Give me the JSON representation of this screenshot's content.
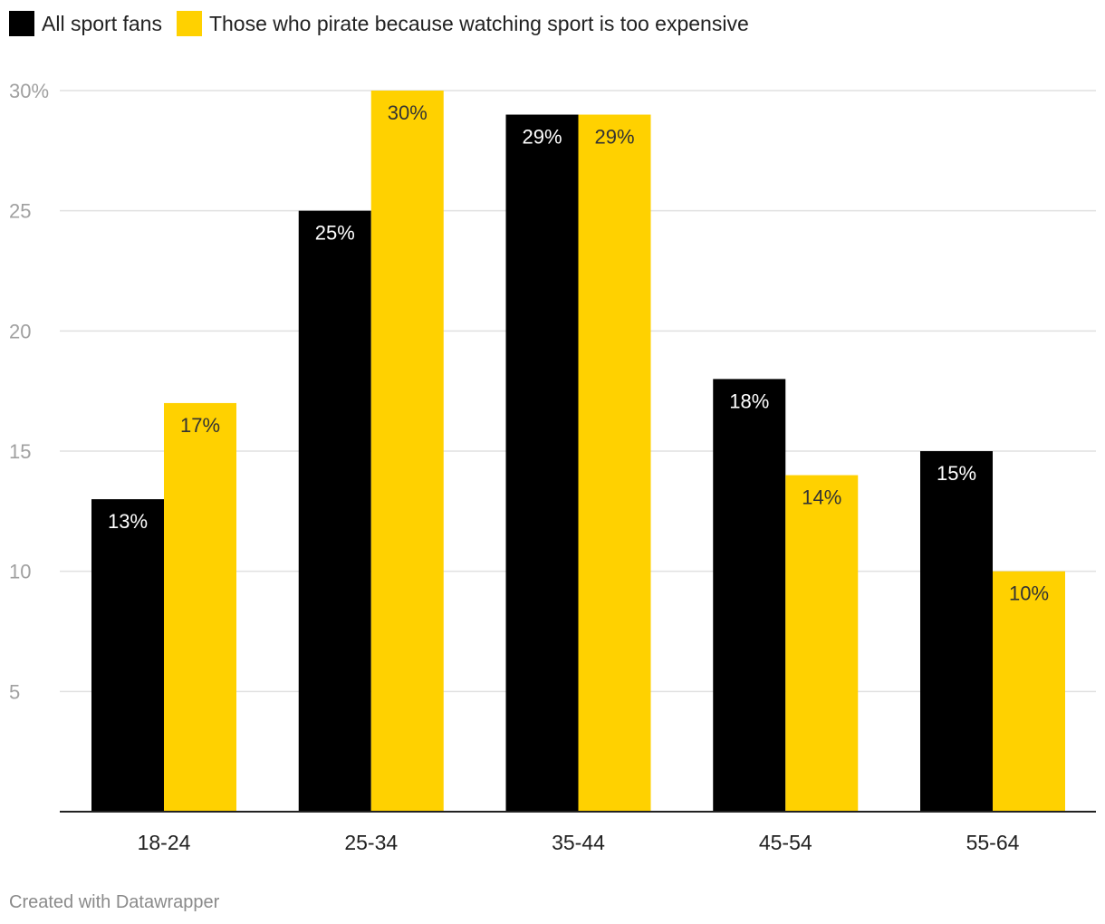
{
  "chart_data": {
    "type": "bar",
    "categories": [
      "18-24",
      "25-34",
      "35-44",
      "45-54",
      "55-64"
    ],
    "series": [
      {
        "name": "All sport fans",
        "color": "#000000",
        "label_color": "#ffffff",
        "values": [
          13,
          25,
          29,
          18,
          15
        ],
        "labels": [
          "13%",
          "25%",
          "29%",
          "18%",
          "15%"
        ]
      },
      {
        "name": "Those who pirate because watching sport is too expensive",
        "color": "#FFD100",
        "label_color": "#333333",
        "values": [
          17,
          30,
          29,
          14,
          10
        ],
        "labels": [
          "17%",
          "30%",
          "29%",
          "14%",
          "10%"
        ]
      }
    ],
    "yticks": [
      {
        "value": 30,
        "label": "30%"
      },
      {
        "value": 25,
        "label": "25"
      },
      {
        "value": 20,
        "label": "20"
      },
      {
        "value": 15,
        "label": "15"
      },
      {
        "value": 10,
        "label": "10"
      },
      {
        "value": 5,
        "label": "5"
      }
    ],
    "ylim": [
      0,
      30
    ],
    "grid": true,
    "legend_position": "top-left",
    "title": "",
    "xlabel": "",
    "ylabel": ""
  },
  "footer": {
    "credit": "Created with Datawrapper"
  }
}
